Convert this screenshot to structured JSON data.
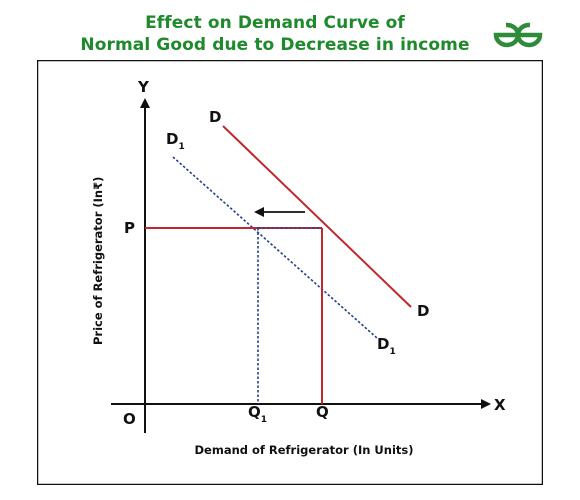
{
  "title": {
    "line1": "Effect on Demand Curve of",
    "line2": "Normal Good due to Decrease in income"
  },
  "logo": {
    "name": "gfg-logo-icon",
    "color": "#2e8b3a"
  },
  "colors": {
    "title": "#1e8a2b",
    "original_curve": "#c0282d",
    "shifted_curve": "#24408f",
    "axes": "#111111"
  },
  "axes": {
    "y_axis_letter": "Y",
    "x_axis_letter": "X",
    "origin": "O",
    "y_label": "Price of Refrigerator (In₹)",
    "x_label": "Demand of Refrigerator (In Units)"
  },
  "curves": {
    "original": {
      "label_main": "D",
      "label_end": "D",
      "style": "solid"
    },
    "shifted": {
      "label_main": "D",
      "label_sub": "1",
      "label_end": "D",
      "label_end_sub": "1",
      "style": "dashed"
    }
  },
  "points": {
    "price": "P",
    "quantity": "Q",
    "quantity_new": "Q",
    "quantity_new_sub": "1"
  },
  "shift_arrow": {
    "direction": "left"
  }
}
